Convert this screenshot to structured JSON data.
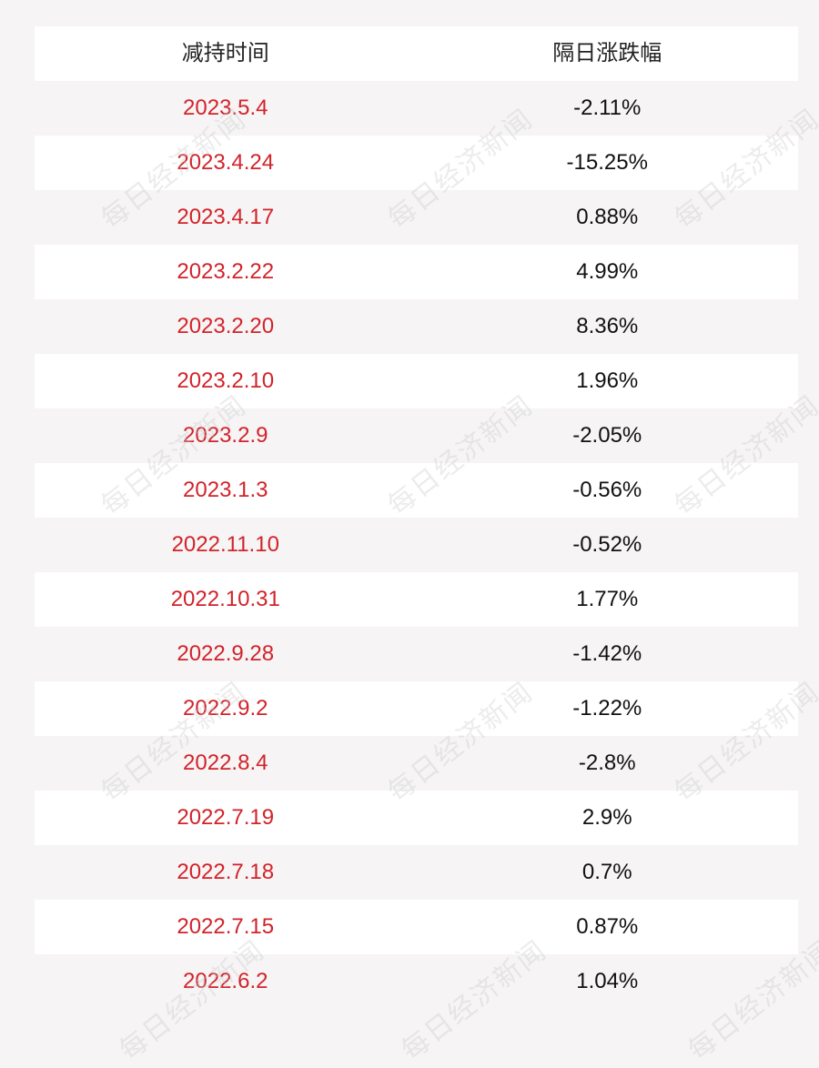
{
  "table": {
    "headers": [
      "减持时间",
      "隔日涨跌幅"
    ],
    "rows": [
      {
        "date": "2023.5.4",
        "change": "-2.11%"
      },
      {
        "date": "2023.4.24",
        "change": "-15.25%"
      },
      {
        "date": "2023.4.17",
        "change": "0.88%"
      },
      {
        "date": "2023.2.22",
        "change": "4.99%"
      },
      {
        "date": "2023.2.20",
        "change": "8.36%"
      },
      {
        "date": "2023.2.10",
        "change": "1.96%"
      },
      {
        "date": "2023.2.9",
        "change": "-2.05%"
      },
      {
        "date": "2023.1.3",
        "change": "-0.56%"
      },
      {
        "date": "2022.11.10",
        "change": "-0.52%"
      },
      {
        "date": "2022.10.31",
        "change": "1.77%"
      },
      {
        "date": "2022.9.28",
        "change": "-1.42%"
      },
      {
        "date": "2022.9.2",
        "change": "-1.22%"
      },
      {
        "date": "2022.8.4",
        "change": "-2.8%"
      },
      {
        "date": "2022.7.19",
        "change": "2.9%"
      },
      {
        "date": "2022.7.18",
        "change": "0.7%"
      },
      {
        "date": "2022.7.15",
        "change": "0.87%"
      },
      {
        "date": "2022.6.2",
        "change": "1.04%"
      }
    ]
  },
  "watermark": {
    "text": "每日经济新闻"
  },
  "colors": {
    "date_text": "#d2232a",
    "value_text": "#111111",
    "row_white": "#ffffff",
    "row_shade": "#f6f4f4"
  }
}
